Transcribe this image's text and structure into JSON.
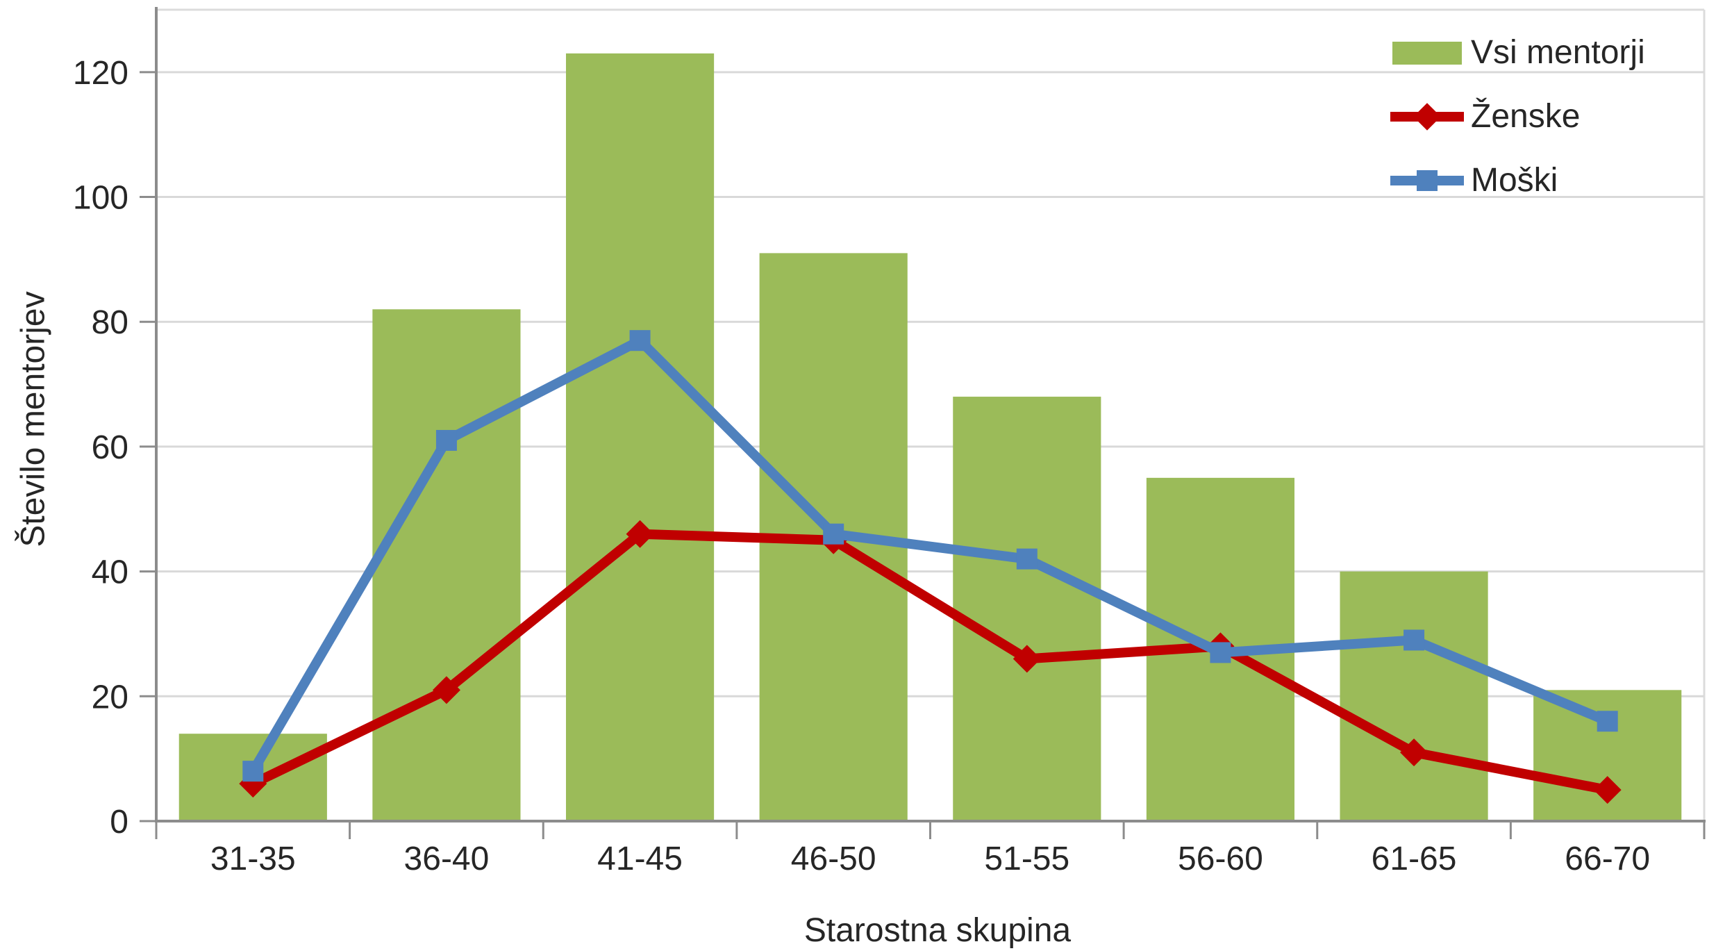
{
  "chart_data": {
    "type": "bar+line",
    "title": "",
    "categories": [
      "31-35",
      "36-40",
      "41-45",
      "46-50",
      "51-55",
      "56-60",
      "61-65",
      "66-70"
    ],
    "series": [
      {
        "name": "Vsi mentorji",
        "type": "bar",
        "marker": "none",
        "color": "#9BBB59",
        "values": [
          14,
          82,
          123,
          91,
          68,
          55,
          40,
          21
        ]
      },
      {
        "name": "Ženske",
        "type": "line",
        "marker": "diamond",
        "color": "#C00000",
        "values": [
          6,
          21,
          46,
          45,
          26,
          28,
          11,
          5
        ]
      },
      {
        "name": "Moški",
        "type": "line",
        "marker": "square",
        "color": "#4F81BD",
        "values": [
          8,
          61,
          77,
          46,
          42,
          27,
          29,
          16
        ]
      }
    ],
    "xlabel": "Starostna skupina",
    "ylabel": "Število mentorjev",
    "ylim": [
      0,
      130
    ],
    "ytick_step": 20,
    "yticks": [
      0,
      20,
      40,
      60,
      80,
      100,
      120
    ],
    "grid": true,
    "legend_position": "top-right-inside",
    "colors": {
      "gridline": "#D9D9D9",
      "plot_border": "#DCDCDC",
      "axis_line": "#8C8C8C",
      "tick_text": "#262626"
    }
  }
}
